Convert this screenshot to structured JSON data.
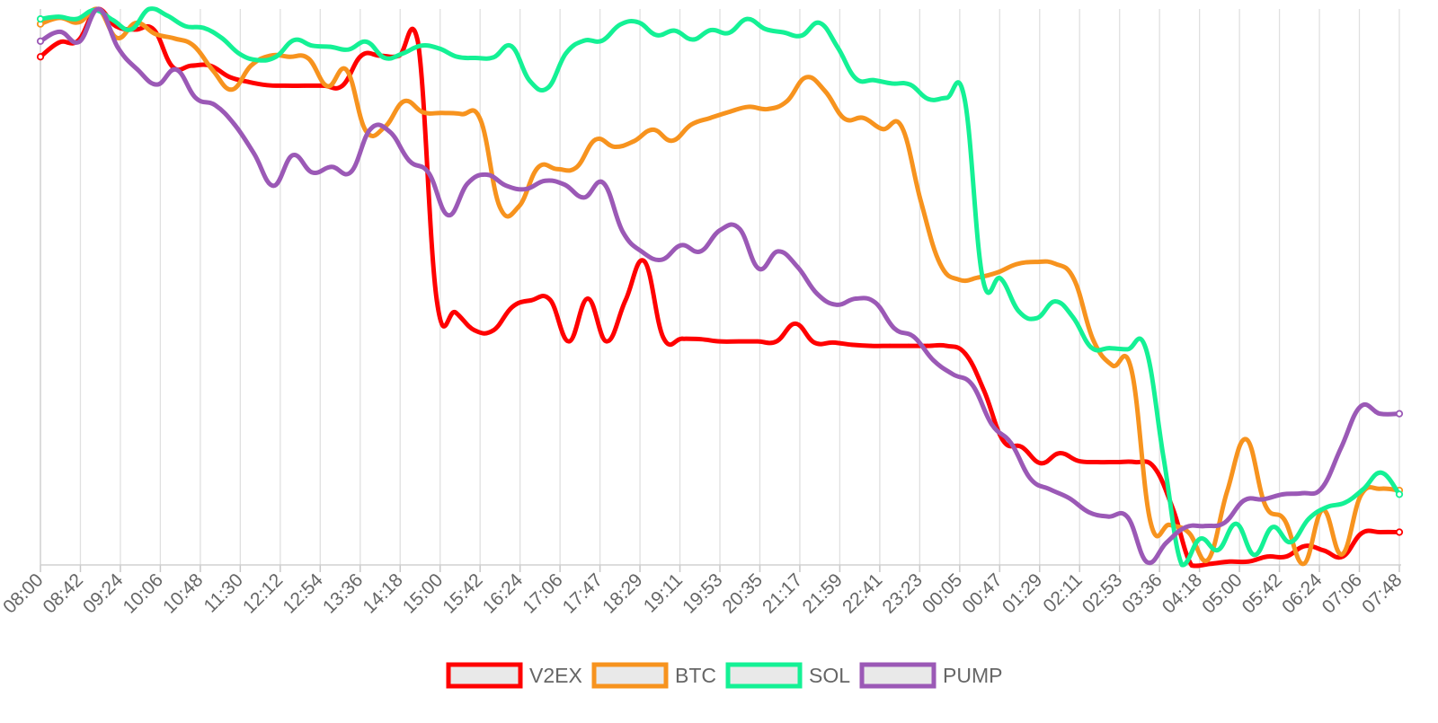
{
  "chart_data": {
    "type": "line",
    "title": "",
    "xlabel": "",
    "ylabel": "",
    "ylim": [
      0,
      100
    ],
    "grid": true,
    "legend_position": "bottom-center",
    "tick_labels": [
      "08:00",
      "08:42",
      "09:24",
      "10:06",
      "10:48",
      "11:30",
      "12:12",
      "12:54",
      "13:36",
      "14:18",
      "15:00",
      "15:42",
      "16:24",
      "17:06",
      "17:47",
      "18:29",
      "19:11",
      "19:53",
      "20:35",
      "21:17",
      "21:59",
      "22:41",
      "23:23",
      "00:05",
      "00:47",
      "01:29",
      "02:11",
      "02:53",
      "03:36",
      "04:18",
      "05:00",
      "05:42",
      "06:24",
      "07:06",
      "07:48"
    ],
    "series": [
      {
        "name": "V2EX",
        "color": "#ff0000",
        "values": [
          91.4,
          94.0,
          94.3,
          100.0,
          96.9,
          96.3,
          96.3,
          89.6,
          89.8,
          89.8,
          87.8,
          86.9,
          86.3,
          86.2,
          86.2,
          86.2,
          86.2,
          91.6,
          91.6,
          91.6,
          94.1,
          47.6,
          45.4,
          42.2,
          42.2,
          46.4,
          47.6,
          47.7,
          40.2,
          47.9,
          40.2,
          47.6,
          54.6,
          40.9,
          40.7,
          40.6,
          40.2,
          40.2,
          40.2,
          40.2,
          43.4,
          40.0,
          40.0,
          39.6,
          39.4,
          39.4,
          39.4,
          39.4,
          39.4,
          38.0,
          31.3,
          22.4,
          21.2,
          18.3,
          20.1,
          18.7,
          18.5,
          18.5,
          18.5,
          17.6,
          10.1,
          -0.1,
          0.2,
          0.6,
          0.6,
          1.5,
          1.5,
          3.4,
          2.6,
          1.5,
          5.7,
          5.9,
          5.9
        ]
      },
      {
        "name": "BTC",
        "color": "#f7931e",
        "values": [
          97.3,
          98.4,
          97.6,
          100.0,
          94.8,
          97.5,
          95.5,
          94.7,
          93.4,
          89.0,
          85.5,
          89.8,
          91.6,
          91.4,
          91.1,
          86.1,
          89.0,
          78.1,
          78.8,
          83.4,
          81.4,
          81.3,
          81.1,
          80.0,
          64.4,
          64.5,
          71.5,
          71.2,
          71.5,
          76.5,
          75.2,
          76.2,
          78.3,
          76.3,
          79.2,
          80.4,
          81.5,
          82.4,
          82.0,
          83.4,
          87.7,
          85.2,
          80.3,
          80.4,
          78.4,
          78.8,
          65.4,
          54.2,
          51.3,
          51.7,
          52.6,
          54.1,
          54.5,
          54.2,
          51.4,
          40.5,
          35.9,
          35.1,
          7.7,
          7.2,
          5.8,
          0.9,
          13.2,
          22.6,
          10.7,
          8.1,
          0.2,
          9.9,
          1.9,
          12.6,
          13.7,
          13.4
        ]
      },
      {
        "name": "SOL",
        "color": "#14f195",
        "values": [
          98.2,
          98.6,
          98.2,
          99.8,
          98.0,
          96.3,
          100.0,
          98.8,
          96.9,
          96.6,
          94.8,
          91.9,
          90.8,
          91.4,
          94.4,
          93.4,
          93.2,
          92.7,
          94.1,
          91.2,
          92.0,
          93.4,
          92.9,
          91.4,
          91.2,
          91.3,
          93.3,
          87.1,
          85.8,
          92.0,
          94.3,
          94.3,
          97.2,
          97.6,
          95.3,
          96.1,
          94.5,
          96.2,
          95.7,
          98.2,
          96.4,
          95.8,
          95.2,
          97.5,
          93.1,
          87.5,
          87.2,
          86.6,
          86.4,
          83.8,
          84.0,
          83.9,
          51.6,
          51.5,
          45.6,
          44.4,
          47.4,
          44.5,
          39.1,
          39.0,
          38.8,
          39.0,
          19.0,
          0.0,
          4.7,
          2.7,
          7.4,
          1.8,
          6.8,
          4.1,
          8.3,
          10.4,
          11.2,
          13.6,
          16.6,
          12.7
        ]
      },
      {
        "name": "PUMP",
        "color": "#9b59b6",
        "values": [
          94.2,
          95.9,
          94.1,
          100.0,
          93.0,
          89.1,
          86.4,
          89.1,
          84.0,
          82.7,
          79.2,
          74.0,
          68.2,
          73.7,
          70.6,
          71.6,
          70.7,
          78.4,
          77.9,
          72.7,
          70.5,
          62.9,
          68.6,
          70.2,
          68.2,
          67.6,
          69.1,
          68.4,
          66.1,
          68.7,
          59.9,
          56.3,
          54.9,
          57.5,
          56.4,
          60.2,
          60.5,
          53.3,
          56.4,
          53.6,
          48.8,
          46.8,
          47.9,
          47.2,
          42.5,
          41.0,
          36.8,
          34.3,
          32.4,
          25.3,
          21.9,
          15.5,
          13.6,
          12.0,
          9.5,
          8.7,
          8.6,
          0.5,
          4.0,
          6.8,
          7.0,
          7.6,
          11.6,
          11.8,
          12.7,
          12.9,
          13.8,
          21.1,
          28.5,
          27.2,
          27.2
        ]
      }
    ]
  }
}
